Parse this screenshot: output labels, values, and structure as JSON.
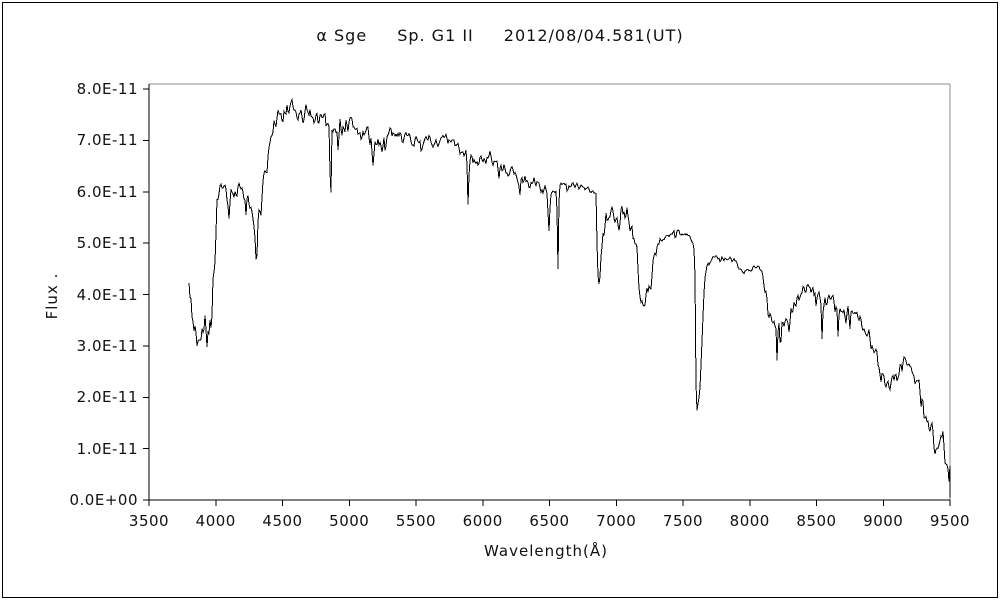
{
  "figure": {
    "title_parts": [
      "α Sge",
      "Sp. G1 II",
      "2012/08/04.581(UT)"
    ],
    "x_axis": {
      "label": "Wavelength(Å)",
      "min": 3500,
      "max": 9500,
      "tick_step": 500,
      "tick_labels": [
        "3500",
        "4000",
        "4500",
        "5000",
        "5500",
        "6000",
        "6500",
        "7000",
        "7500",
        "8000",
        "8500",
        "9000",
        "9500"
      ]
    },
    "y_axis": {
      "label": "Flux .",
      "min_e11": 0,
      "max_e11": 8,
      "tick_labels": [
        "0.0E+00",
        "1.0E-11",
        "2.0E-11",
        "3.0E-11",
        "4.0E-11",
        "5.0E-11",
        "6.0E-11",
        "7.0E-11",
        "8.0E-11"
      ]
    },
    "colors": {
      "spectrum": "#000000",
      "axis": "#000000",
      "frame_gray": "#8c8c8c",
      "background": "#ffffff"
    }
  },
  "chart_data": {
    "type": "line",
    "title": "α Sge  Sp. G1 II  2012/08/04.581(UT)",
    "xlabel": "Wavelength(Å)",
    "ylabel": "Flux .",
    "xlim": [
      3500,
      9500
    ],
    "ylim_e11": [
      0,
      8.1
    ],
    "x_range_of_data": [
      3797,
      9507
    ],
    "flux_scale_note": "flux values in units of 1E-11",
    "continuum_anchors": [
      [
        3797,
        4.3
      ],
      [
        3801,
        4.6
      ],
      [
        3808,
        3.8
      ],
      [
        3830,
        3.45
      ],
      [
        3860,
        3.25
      ],
      [
        3890,
        3.45
      ],
      [
        3920,
        3.5
      ],
      [
        3950,
        3.6
      ],
      [
        3975,
        3.9
      ],
      [
        3995,
        4.8
      ],
      [
        4010,
        5.9
      ],
      [
        4040,
        6.0
      ],
      [
        4080,
        5.95
      ],
      [
        4120,
        5.9
      ],
      [
        4160,
        6.0
      ],
      [
        4200,
        5.9
      ],
      [
        4240,
        5.8
      ],
      [
        4270,
        5.55
      ],
      [
        4300,
        5.25
      ],
      [
        4330,
        5.8
      ],
      [
        4360,
        6.3
      ],
      [
        4400,
        6.85
      ],
      [
        4440,
        7.2
      ],
      [
        4480,
        7.45
      ],
      [
        4520,
        7.5
      ],
      [
        4570,
        7.55
      ],
      [
        4620,
        7.45
      ],
      [
        4680,
        7.5
      ],
      [
        4740,
        7.5
      ],
      [
        4800,
        7.45
      ],
      [
        4855,
        7.3
      ],
      [
        4880,
        7.35
      ],
      [
        4930,
        7.3
      ],
      [
        4990,
        7.3
      ],
      [
        5050,
        7.25
      ],
      [
        5110,
        7.1
      ],
      [
        5170,
        7.05
      ],
      [
        5230,
        6.95
      ],
      [
        5290,
        7.05
      ],
      [
        5350,
        7.15
      ],
      [
        5420,
        7.1
      ],
      [
        5480,
        7.0
      ],
      [
        5550,
        7.0
      ],
      [
        5650,
        6.95
      ],
      [
        5720,
        7.0
      ],
      [
        5800,
        6.9
      ],
      [
        5860,
        6.75
      ],
      [
        5920,
        6.6
      ],
      [
        5980,
        6.6
      ],
      [
        6040,
        6.7
      ],
      [
        6100,
        6.55
      ],
      [
        6160,
        6.4
      ],
      [
        6220,
        6.35
      ],
      [
        6280,
        6.25
      ],
      [
        6340,
        6.2
      ],
      [
        6400,
        6.15
      ],
      [
        6440,
        6.1
      ],
      [
        6480,
        5.95
      ],
      [
        6520,
        6.05
      ],
      [
        6580,
        6.1
      ],
      [
        6640,
        6.1
      ],
      [
        6700,
        6.15
      ],
      [
        6760,
        6.1
      ],
      [
        6820,
        6.05
      ],
      [
        6848,
        5.95
      ],
      [
        6860,
        4.5
      ],
      [
        6875,
        4.25
      ],
      [
        6890,
        4.8
      ],
      [
        6905,
        5.15
      ],
      [
        6925,
        5.4
      ],
      [
        6960,
        5.45
      ],
      [
        7000,
        5.45
      ],
      [
        7040,
        5.5
      ],
      [
        7080,
        5.5
      ],
      [
        7120,
        5.35
      ],
      [
        7155,
        4.9
      ],
      [
        7185,
        3.95
      ],
      [
        7215,
        3.75
      ],
      [
        7250,
        4.15
      ],
      [
        7280,
        4.6
      ],
      [
        7310,
        4.95
      ],
      [
        7350,
        5.1
      ],
      [
        7400,
        5.15
      ],
      [
        7450,
        5.2
      ],
      [
        7500,
        5.15
      ],
      [
        7540,
        5.15
      ],
      [
        7580,
        5.0
      ],
      [
        7589,
        4.6
      ],
      [
        7596,
        2.3
      ],
      [
        7604,
        1.78
      ],
      [
        7613,
        2.0
      ],
      [
        7625,
        2.15
      ],
      [
        7642,
        3.1
      ],
      [
        7660,
        4.3
      ],
      [
        7685,
        4.6
      ],
      [
        7720,
        4.7
      ],
      [
        7760,
        4.72
      ],
      [
        7800,
        4.7
      ],
      [
        7840,
        4.68
      ],
      [
        7880,
        4.66
      ],
      [
        7915,
        4.55
      ],
      [
        7940,
        4.45
      ],
      [
        7975,
        4.5
      ],
      [
        8010,
        4.5
      ],
      [
        8050,
        4.55
      ],
      [
        8085,
        4.5
      ],
      [
        8120,
        4.1
      ],
      [
        8150,
        3.6
      ],
      [
        8185,
        3.45
      ],
      [
        8215,
        3.4
      ],
      [
        8250,
        3.45
      ],
      [
        8285,
        3.5
      ],
      [
        8320,
        3.7
      ],
      [
        8360,
        3.95
      ],
      [
        8400,
        4.1
      ],
      [
        8440,
        4.15
      ],
      [
        8480,
        4.05
      ],
      [
        8520,
        3.95
      ],
      [
        8560,
        3.8
      ],
      [
        8600,
        3.95
      ],
      [
        8640,
        3.85
      ],
      [
        8680,
        3.7
      ],
      [
        8720,
        3.65
      ],
      [
        8760,
        3.7
      ],
      [
        8800,
        3.6
      ],
      [
        8840,
        3.55
      ],
      [
        8880,
        3.3
      ],
      [
        8910,
        3.1
      ],
      [
        8940,
        2.85
      ],
      [
        8970,
        2.6
      ],
      [
        9000,
        2.45
      ],
      [
        9040,
        2.3
      ],
      [
        9080,
        2.35
      ],
      [
        9120,
        2.55
      ],
      [
        9160,
        2.7
      ],
      [
        9200,
        2.6
      ],
      [
        9240,
        2.35
      ],
      [
        9280,
        2.0
      ],
      [
        9320,
        1.7
      ],
      [
        9360,
        1.35
      ],
      [
        9400,
        1.1
      ],
      [
        9440,
        1.0
      ],
      [
        9470,
        0.9
      ],
      [
        9500,
        0.55
      ],
      [
        9507,
        0.15
      ]
    ],
    "absorption_lines": [
      [
        3934,
        0.7,
        14
      ],
      [
        3968,
        0.6,
        14
      ],
      [
        4101,
        0.45,
        12
      ],
      [
        4227,
        0.4,
        10
      ],
      [
        4305,
        0.55,
        16
      ],
      [
        4340,
        0.45,
        12
      ],
      [
        4383,
        0.3,
        10
      ],
      [
        4861,
        1.55,
        11
      ],
      [
        5175,
        0.7,
        14
      ],
      [
        5270,
        0.35,
        10
      ],
      [
        5890,
        1.0,
        11
      ],
      [
        6122,
        0.25,
        10
      ],
      [
        6280,
        0.25,
        10
      ],
      [
        6495,
        0.75,
        14
      ],
      [
        6563,
        1.6,
        10
      ],
      [
        7180,
        0.3,
        15
      ],
      [
        8205,
        0.75,
        9
      ],
      [
        8230,
        0.5,
        8
      ],
      [
        8498,
        0.35,
        8
      ],
      [
        8542,
        0.85,
        9
      ],
      [
        8662,
        0.5,
        9
      ],
      [
        8750,
        0.35,
        10
      ],
      [
        9015,
        0.25,
        12
      ]
    ],
    "noise_regions": [
      [
        3795,
        3990,
        0.5
      ],
      [
        3990,
        4380,
        0.2
      ],
      [
        4380,
        5320,
        0.26
      ],
      [
        5320,
        6480,
        0.15
      ],
      [
        6480,
        6900,
        0.1
      ],
      [
        6900,
        7330,
        0.3
      ],
      [
        7330,
        7580,
        0.07
      ],
      [
        7580,
        7660,
        0.12
      ],
      [
        7660,
        8100,
        0.07
      ],
      [
        8100,
        8420,
        0.16
      ],
      [
        8420,
        8900,
        0.16
      ],
      [
        8900,
        9260,
        0.2
      ],
      [
        9260,
        9430,
        0.35
      ],
      [
        9430,
        9510,
        0.55
      ]
    ],
    "noise_seed": 7,
    "downspike_probability": 0.05
  }
}
